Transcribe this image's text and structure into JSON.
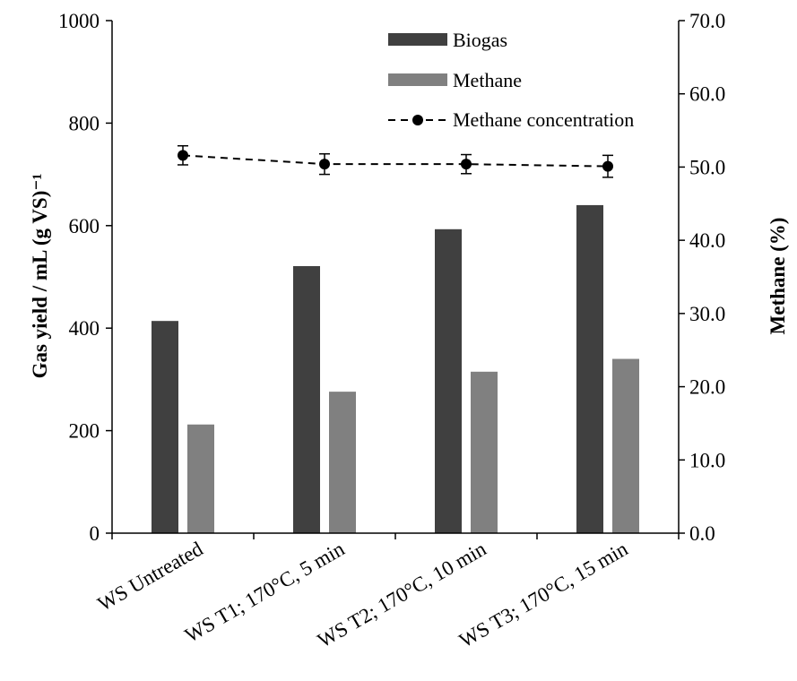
{
  "chart_data": {
    "type": "bar",
    "categories": [
      "WS Untreated",
      "WS T1; 170°C, 5 min",
      "WS T2; 170°C, 10 min",
      "WS T3; 170°C, 15 min"
    ],
    "series": [
      {
        "name": "Biogas",
        "type": "bar",
        "axis": "left",
        "color": "#404040",
        "values": [
          414,
          521,
          593,
          640
        ]
      },
      {
        "name": "Methane",
        "type": "bar",
        "axis": "left",
        "color": "#808080",
        "values": [
          212,
          276,
          315,
          340
        ]
      },
      {
        "name": "Methane concentration",
        "type": "line",
        "axis": "right",
        "color": "#000000",
        "line_style": "dashed",
        "marker": "circle",
        "values": [
          51.6,
          50.4,
          50.4,
          50.1
        ],
        "error": [
          1.3,
          1.4,
          1.3,
          1.5
        ]
      }
    ],
    "ylabel": "Gas yield / mL (g VS)⁻¹",
    "ylim": [
      0,
      1000
    ],
    "yticks": [
      "0",
      "200",
      "400",
      "600",
      "800",
      "1000"
    ],
    "y2label": "Methane (%)",
    "y2lim": [
      0,
      70
    ],
    "y2ticks": [
      "0.0",
      "10.0",
      "20.0",
      "30.0",
      "40.0",
      "50.0",
      "60.0",
      "70.0"
    ],
    "xlabel": "",
    "grid": false,
    "legend_position": "top-right"
  }
}
